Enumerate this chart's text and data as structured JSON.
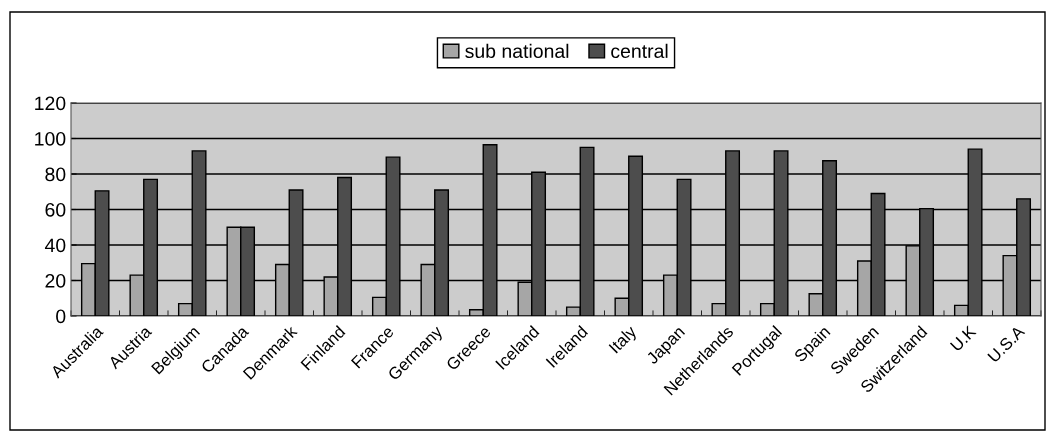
{
  "chart_data": {
    "type": "bar",
    "categories": [
      "Australia",
      "Austria",
      "Belgium",
      "Canada",
      "Denmark",
      "Finland",
      "France",
      "Germany",
      "Greece",
      "Iceland",
      "Ireland",
      "Italy",
      "Japan",
      "Netherlands",
      "Portugal",
      "Spain",
      "Sweden",
      "Switzerland",
      "U.K",
      "U.S.A"
    ],
    "series": [
      {
        "name": "sub national",
        "color": "#a6a6a6",
        "values": [
          29.5,
          23,
          7,
          50,
          29,
          22,
          10.5,
          29,
          3.5,
          19,
          5,
          10,
          23,
          7,
          7,
          12.5,
          31,
          39.5,
          6,
          34
        ]
      },
      {
        "name": "central",
        "color": "#4d4d4d",
        "values": [
          70.5,
          77,
          93,
          50,
          71,
          78,
          89.5,
          71,
          96.5,
          81,
          95,
          90,
          77,
          93,
          93,
          87.5,
          69,
          60.5,
          94,
          66
        ]
      }
    ],
    "ylim": [
      0,
      120
    ],
    "yticks": [
      0,
      20,
      40,
      60,
      80,
      100,
      120
    ],
    "grid": "y",
    "legend": "top"
  }
}
